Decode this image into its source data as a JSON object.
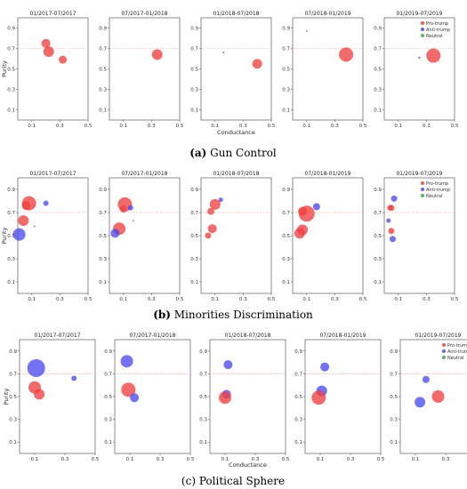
{
  "chart_data": [
    {
      "caption_letter": "(a)",
      "caption_text": "Gun Control",
      "ylabel": "Purity",
      "xlabel": "Conductance",
      "threshold": 0.7,
      "x_ticks": [
        "0.1",
        "0.3",
        "0.5"
      ],
      "y_ticks": [
        "0.1",
        "0.3",
        "0.5",
        "0.7",
        "0.9"
      ],
      "xlim": [
        0,
        0.5
      ],
      "ylim": [
        0,
        1.0
      ],
      "legend_entries": [
        "Pro-trump",
        "Anti-trump",
        "Neutral"
      ],
      "panels": [
        {
          "title": "01/2017-07/2017",
          "points": [
            {
              "group": "Pro-trump",
              "x": 0.2,
              "y": 0.75,
              "size": 5
            },
            {
              "group": "Pro-trump",
              "x": 0.22,
              "y": 0.67,
              "size": 6
            },
            {
              "group": "Pro-trump",
              "x": 0.32,
              "y": 0.59,
              "size": 4.5
            }
          ]
        },
        {
          "title": "07/2017-01/2018",
          "points": [
            {
              "group": "Pro-trump",
              "x": 0.34,
              "y": 0.64,
              "size": 6
            }
          ]
        },
        {
          "title": "01/2018-07/2018",
          "points": [
            {
              "group": "Anti-trump",
              "x": 0.16,
              "y": 0.66,
              "size": 1
            },
            {
              "group": "Pro-trump",
              "x": 0.4,
              "y": 0.55,
              "size": 5.5
            }
          ]
        },
        {
          "title": "07/2018-01/2019",
          "points": [
            {
              "group": "Neutral",
              "x": 0.1,
              "y": 0.87,
              "size": 1
            },
            {
              "group": "Pro-trump",
              "x": 0.38,
              "y": 0.64,
              "size": 8
            }
          ]
        },
        {
          "title": "01/2019-07/2019",
          "points": [
            {
              "group": "Anti-trump",
              "x": 0.25,
              "y": 0.61,
              "size": 1.2
            },
            {
              "group": "Pro-trump",
              "x": 0.35,
              "y": 0.63,
              "size": 8
            }
          ]
        }
      ]
    },
    {
      "caption_letter": "(b)",
      "caption_text": "Minorities Discrimination",
      "ylabel": "Purity",
      "xlabel": "",
      "threshold": 0.7,
      "x_ticks": [
        "0.1",
        "0.3",
        "0.5"
      ],
      "y_ticks": [
        "0.1",
        "0.3",
        "0.5",
        "0.7",
        "0.9"
      ],
      "xlim": [
        0,
        0.5
      ],
      "ylim": [
        0,
        1.0
      ],
      "legend_entries": [
        "Pro-trump",
        "Anti-trump",
        "Neutral"
      ],
      "panels": [
        {
          "title": "01/2017-07/2017",
          "points": [
            {
              "group": "Pro-trump",
              "x": 0.08,
              "y": 0.78,
              "size": 8
            },
            {
              "group": "Pro-trump",
              "x": 0.06,
              "y": 0.76,
              "size": 5
            },
            {
              "group": "Anti-trump",
              "x": 0.2,
              "y": 0.78,
              "size": 3
            },
            {
              "group": "Pro-trump",
              "x": 0.04,
              "y": 0.63,
              "size": 6
            },
            {
              "group": "Neutral",
              "x": 0.12,
              "y": 0.58,
              "size": 1
            },
            {
              "group": "Anti-trump",
              "x": 0.01,
              "y": 0.51,
              "size": 7
            }
          ]
        },
        {
          "title": "07/2017-01/2018",
          "points": [
            {
              "group": "Pro-trump",
              "x": 0.11,
              "y": 0.77,
              "size": 8
            },
            {
              "group": "Pro-trump",
              "x": 0.1,
              "y": 0.73,
              "size": 4
            },
            {
              "group": "Anti-trump",
              "x": 0.15,
              "y": 0.74,
              "size": 3
            },
            {
              "group": "Neutral",
              "x": 0.17,
              "y": 0.63,
              "size": 1
            },
            {
              "group": "Pro-trump",
              "x": 0.07,
              "y": 0.56,
              "size": 7
            },
            {
              "group": "Anti-trump",
              "x": 0.04,
              "y": 0.52,
              "size": 5
            }
          ]
        },
        {
          "title": "01/2018-07/2018",
          "points": [
            {
              "group": "Anti-trump",
              "x": 0.14,
              "y": 0.81,
              "size": 2.5
            },
            {
              "group": "Pro-trump",
              "x": 0.1,
              "y": 0.77,
              "size": 6
            },
            {
              "group": "Pro-trump",
              "x": 0.07,
              "y": 0.71,
              "size": 4
            },
            {
              "group": "Pro-trump",
              "x": 0.08,
              "y": 0.56,
              "size": 5
            },
            {
              "group": "Pro-trump",
              "x": 0.05,
              "y": 0.5,
              "size": 3.5
            }
          ]
        },
        {
          "title": "07/2018-01/2019",
          "points": [
            {
              "group": "Pro-trump",
              "x": 0.07,
              "y": 0.71,
              "size": 5
            },
            {
              "group": "Pro-trump",
              "x": 0.1,
              "y": 0.69,
              "size": 9
            },
            {
              "group": "Anti-trump",
              "x": 0.17,
              "y": 0.75,
              "size": 4
            },
            {
              "group": "Pro-trump",
              "x": 0.07,
              "y": 0.55,
              "size": 6
            },
            {
              "group": "Pro-trump",
              "x": 0.05,
              "y": 0.52,
              "size": 6
            }
          ]
        },
        {
          "title": "01/2019-07/2019",
          "points": [
            {
              "group": "Anti-trump",
              "x": 0.07,
              "y": 0.82,
              "size": 3.5
            },
            {
              "group": "Pro-trump",
              "x": 0.05,
              "y": 0.74,
              "size": 3.5
            },
            {
              "group": "Pro-trump",
              "x": 0.04,
              "y": 0.74,
              "size": 3
            },
            {
              "group": "Anti-trump",
              "x": 0.03,
              "y": 0.63,
              "size": 2.5
            },
            {
              "group": "Pro-trump",
              "x": 0.05,
              "y": 0.54,
              "size": 3.5
            },
            {
              "group": "Anti-trump",
              "x": 0.06,
              "y": 0.47,
              "size": 3.5
            }
          ]
        }
      ]
    },
    {
      "caption_letter": "(c)",
      "caption_text": "Political Sphere",
      "ylabel": "Purity",
      "xlabel": "Conductance",
      "threshold": 0.7,
      "x_ticks": [
        "0.1",
        "0.3",
        "0.5"
      ],
      "y_ticks": [
        "0.1",
        "0.3",
        "0.5",
        "0.7",
        "0.9"
      ],
      "xlim": [
        0,
        0.5
      ],
      "ylim": [
        0,
        1.0
      ],
      "legend_entries": [
        "Pro-trump",
        "Anti-trump",
        "Neutral"
      ],
      "panels": [
        {
          "title": "01/2017-07/2017",
          "points": [
            {
              "group": "Anti-trump",
              "x": 0.11,
              "y": 0.75,
              "size": 10
            },
            {
              "group": "Anti-trump",
              "x": 0.36,
              "y": 0.66,
              "size": 3
            },
            {
              "group": "Pro-trump",
              "x": 0.1,
              "y": 0.58,
              "size": 7
            },
            {
              "group": "Pro-trump",
              "x": 0.13,
              "y": 0.52,
              "size": 6
            }
          ]
        },
        {
          "title": "07/2017-01/2018",
          "points": [
            {
              "group": "Anti-trump",
              "x": 0.08,
              "y": 0.81,
              "size": 7
            },
            {
              "group": "Pro-trump",
              "x": 0.09,
              "y": 0.56,
              "size": 8
            },
            {
              "group": "Anti-trump",
              "x": 0.13,
              "y": 0.49,
              "size": 5
            }
          ]
        },
        {
          "title": "01/2018-07/2018",
          "points": [
            {
              "group": "Anti-trump",
              "x": 0.12,
              "y": 0.78,
              "size": 5
            },
            {
              "group": "Anti-trump",
              "x": 0.11,
              "y": 0.52,
              "size": 5
            },
            {
              "group": "Pro-trump",
              "x": 0.1,
              "y": 0.49,
              "size": 7
            }
          ]
        },
        {
          "title": "07/2018-01/2019",
          "points": [
            {
              "group": "Anti-trump",
              "x": 0.13,
              "y": 0.76,
              "size": 5
            },
            {
              "group": "Anti-trump",
              "x": 0.11,
              "y": 0.55,
              "size": 6
            },
            {
              "group": "Pro-trump",
              "x": 0.09,
              "y": 0.49,
              "size": 8
            }
          ]
        },
        {
          "title": "01/2019-07/2019",
          "points": [
            {
              "group": "Anti-trump",
              "x": 0.17,
              "y": 0.65,
              "size": 4
            },
            {
              "group": "Pro-trump",
              "x": 0.25,
              "y": 0.5,
              "size": 7
            },
            {
              "group": "Anti-trump",
              "x": 0.13,
              "y": 0.45,
              "size": 6
            }
          ]
        }
      ]
    }
  ],
  "colors": {
    "Pro-trump": "#f04040",
    "Anti-trump": "#4a4af0",
    "Neutral": "#3aa84a",
    "threshold": "#ff8a8a"
  }
}
